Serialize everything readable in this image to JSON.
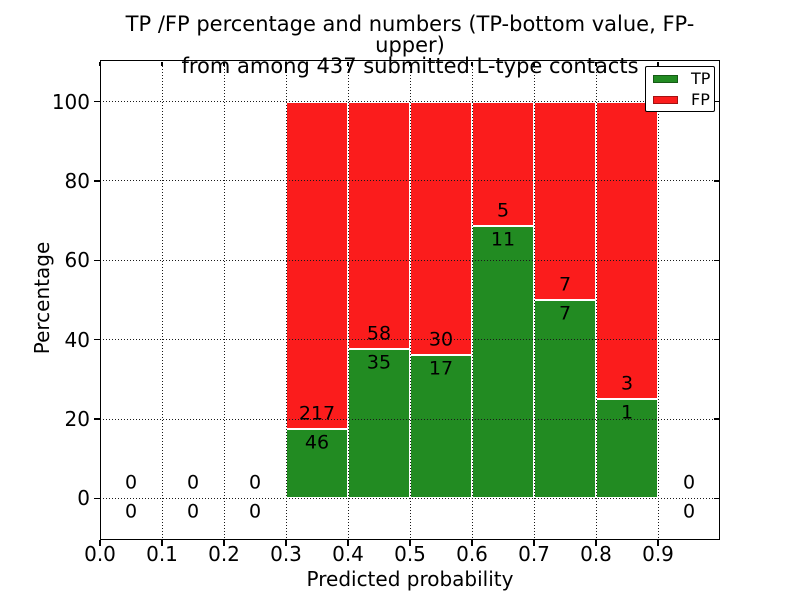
{
  "chart_data": {
    "type": "bar",
    "stacked": true,
    "normalization": "percent_within_bin",
    "title_line1": "TP /FP percentage and numbers (TP-bottom value, FP-upper)",
    "title_line2": "from among 437 submitted L-type contacts",
    "xlabel": "Predicted probability",
    "ylabel": "Percentage",
    "xlim": [
      0.0,
      1.0
    ],
    "ylim_display": [
      -10.5,
      110.5
    ],
    "x_tick_labels": [
      "0.0",
      "0.1",
      "0.2",
      "0.3",
      "0.4",
      "0.5",
      "0.6",
      "0.7",
      "0.8",
      "0.9"
    ],
    "y_tick_values": [
      0,
      20,
      40,
      60,
      80,
      100
    ],
    "grid": "dotted",
    "legend": {
      "position": "upper right",
      "entries": [
        {
          "label": "TP",
          "color": "#228b22"
        },
        {
          "label": "FP",
          "color": "#fb1c1c"
        }
      ]
    },
    "bins": [
      {
        "range": [
          0.0,
          0.1
        ],
        "tp": 0,
        "fp": 0
      },
      {
        "range": [
          0.1,
          0.2
        ],
        "tp": 0,
        "fp": 0
      },
      {
        "range": [
          0.2,
          0.3
        ],
        "tp": 0,
        "fp": 0
      },
      {
        "range": [
          0.3,
          0.4
        ],
        "tp": 46,
        "fp": 217
      },
      {
        "range": [
          0.4,
          0.5
        ],
        "tp": 35,
        "fp": 58
      },
      {
        "range": [
          0.5,
          0.6
        ],
        "tp": 17,
        "fp": 30
      },
      {
        "range": [
          0.6,
          0.7
        ],
        "tp": 11,
        "fp": 5
      },
      {
        "range": [
          0.7,
          0.8
        ],
        "tp": 7,
        "fp": 7
      },
      {
        "range": [
          0.8,
          0.9
        ],
        "tp": 1,
        "fp": 3
      },
      {
        "range": [
          0.9,
          1.0
        ],
        "tp": 0,
        "fp": 0
      }
    ]
  }
}
